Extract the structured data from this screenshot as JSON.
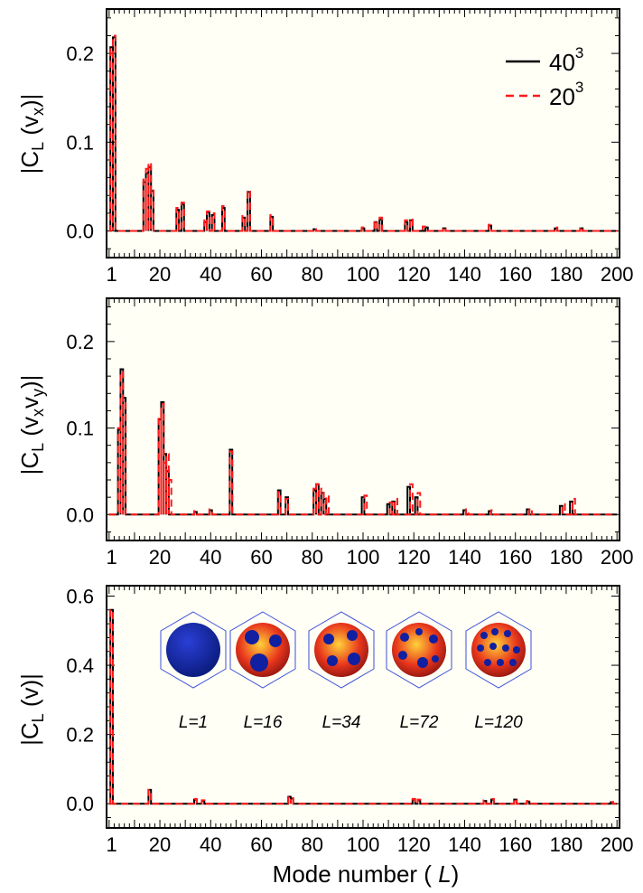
{
  "colors": {
    "series_40": "#000000",
    "series_20": "#ff1a1a",
    "frame_bg": "#fffff6"
  },
  "chart_data": [
    {
      "type": "line",
      "ylabel": "|C_L (v_x)|",
      "ylabel_parts": {
        "pre": "|C",
        "sub1": "L",
        "mid": " (v",
        "sub2": "x",
        "post": ")|"
      },
      "xlim": [
        -1,
        201
      ],
      "ylim": [
        -0.03,
        0.25
      ],
      "x_ticks": [
        1,
        20,
        40,
        60,
        80,
        100,
        120,
        140,
        160,
        180,
        200
      ],
      "y_ticks": [
        0.0,
        0.1,
        0.2
      ],
      "y_tick_labels": [
        "0.0",
        "0.1",
        "0.2"
      ],
      "legend": {
        "placement": "top-right",
        "entries": [
          {
            "series": 0,
            "base": "40",
            "sup": "3"
          },
          {
            "series": 1,
            "base": "20",
            "sup": "3"
          }
        ]
      },
      "series": [
        {
          "name": "40³",
          "style": "solid",
          "points": [
            [
              1,
              0.207
            ],
            [
              2,
              0.218
            ],
            [
              14,
              0.055
            ],
            [
              15,
              0.065
            ],
            [
              16,
              0.072
            ],
            [
              17,
              0.045
            ],
            [
              27,
              0.024
            ],
            [
              29,
              0.03
            ],
            [
              38,
              0.01
            ],
            [
              39,
              0.021
            ],
            [
              41,
              0.018
            ],
            [
              45,
              0.026
            ],
            [
              53,
              0.015
            ],
            [
              55,
              0.044
            ],
            [
              64,
              0.016
            ],
            [
              81,
              0.002
            ],
            [
              100,
              0.003
            ],
            [
              105,
              0.01
            ],
            [
              107,
              0.013
            ],
            [
              117,
              0.01
            ],
            [
              119,
              0.012
            ],
            [
              125,
              0.004
            ],
            [
              132,
              0.003
            ],
            [
              150,
              0.006
            ],
            [
              176,
              0.003
            ],
            [
              186,
              0.003
            ]
          ]
        },
        {
          "name": "20³",
          "style": "dashed",
          "points": [
            [
              1,
              0.205
            ],
            [
              2,
              0.22
            ],
            [
              14,
              0.058
            ],
            [
              15,
              0.07
            ],
            [
              16,
              0.077
            ],
            [
              17,
              0.05
            ],
            [
              27,
              0.026
            ],
            [
              29,
              0.032
            ],
            [
              38,
              0.012
            ],
            [
              39,
              0.022
            ],
            [
              41,
              0.02
            ],
            [
              45,
              0.028
            ],
            [
              53,
              0.017
            ],
            [
              55,
              0.046
            ],
            [
              64,
              0.018
            ],
            [
              81,
              0.003
            ],
            [
              100,
              0.004
            ],
            [
              105,
              0.012
            ],
            [
              107,
              0.015
            ],
            [
              117,
              0.012
            ],
            [
              119,
              0.014
            ],
            [
              124,
              0.005
            ],
            [
              132,
              0.004
            ],
            [
              150,
              0.007
            ],
            [
              176,
              0.004
            ],
            [
              186,
              0.004
            ]
          ]
        }
      ]
    },
    {
      "type": "line",
      "ylabel": "|C_L (v_x v_y)|",
      "ylabel_parts": {
        "pre": "|C",
        "sub1": "L",
        "mid": " (v",
        "sub2": "x",
        "mid2": "v",
        "sub3": "y",
        "post": ")|"
      },
      "xlim": [
        -1,
        201
      ],
      "ylim": [
        -0.03,
        0.25
      ],
      "x_ticks": [
        1,
        20,
        40,
        60,
        80,
        100,
        120,
        140,
        160,
        180,
        200
      ],
      "y_ticks": [
        0.0,
        0.1,
        0.2
      ],
      "y_tick_labels": [
        "0.0",
        "0.1",
        "0.2"
      ],
      "series": [
        {
          "name": "40³",
          "style": "solid",
          "points": [
            [
              4,
              0.098
            ],
            [
              5,
              0.168
            ],
            [
              6,
              0.135
            ],
            [
              20,
              0.11
            ],
            [
              21,
              0.13
            ],
            [
              22,
              0.07
            ],
            [
              23,
              0.05
            ],
            [
              34,
              0.003
            ],
            [
              40,
              0.005
            ],
            [
              48,
              0.075
            ],
            [
              67,
              0.028
            ],
            [
              70,
              0.02
            ],
            [
              81,
              0.028
            ],
            [
              82,
              0.035
            ],
            [
              84,
              0.025
            ],
            [
              85,
              0.018
            ],
            [
              100,
              0.02
            ],
            [
              110,
              0.012
            ],
            [
              112,
              0.015
            ],
            [
              118,
              0.032
            ],
            [
              121,
              0.02
            ],
            [
              140,
              0.005
            ],
            [
              150,
              0.004
            ],
            [
              165,
              0.006
            ],
            [
              178,
              0.01
            ],
            [
              182,
              0.015
            ]
          ]
        },
        {
          "name": "20³",
          "style": "dashed",
          "points": [
            [
              4,
              0.1
            ],
            [
              5,
              0.165
            ],
            [
              6,
              0.13
            ],
            [
              20,
              0.115
            ],
            [
              21,
              0.128
            ],
            [
              22,
              0.06
            ],
            [
              23,
              0.07
            ],
            [
              24,
              0.04
            ],
            [
              34,
              0.004
            ],
            [
              40,
              0.006
            ],
            [
              48,
              0.073
            ],
            [
              67,
              0.026
            ],
            [
              70,
              0.018
            ],
            [
              81,
              0.03
            ],
            [
              82,
              0.035
            ],
            [
              84,
              0.03
            ],
            [
              86,
              0.022
            ],
            [
              101,
              0.022
            ],
            [
              111,
              0.014
            ],
            [
              113,
              0.018
            ],
            [
              119,
              0.035
            ],
            [
              122,
              0.025
            ],
            [
              141,
              0.006
            ],
            [
              151,
              0.005
            ],
            [
              166,
              0.007
            ],
            [
              179,
              0.012
            ],
            [
              183,
              0.018
            ]
          ]
        }
      ]
    },
    {
      "type": "line",
      "ylabel": "|C_L (v)|",
      "ylabel_parts": {
        "pre": "|C",
        "sub1": "L",
        "mid": " (v",
        "post": ")|"
      },
      "xlim": [
        -1,
        201
      ],
      "ylim": [
        -0.07,
        0.63
      ],
      "x_ticks": [
        1,
        20,
        40,
        60,
        80,
        100,
        120,
        140,
        160,
        180,
        200
      ],
      "y_ticks": [
        0.0,
        0.2,
        0.4,
        0.6
      ],
      "y_tick_labels": [
        "0.0",
        "0.2",
        "0.4",
        "0.6"
      ],
      "xlabel": "Mode number ( L)",
      "xlabel_parts": {
        "pre": "Mode number ( ",
        "em": "L",
        "post": ")"
      },
      "insets": [
        {
          "label": "L=1"
        },
        {
          "label": "L=16"
        },
        {
          "label": "L=34"
        },
        {
          "label": "L=72"
        },
        {
          "label": "L=120"
        }
      ],
      "series": [
        {
          "name": "40³",
          "style": "solid",
          "points": [
            [
              1,
              0.56
            ],
            [
              16,
              0.04
            ],
            [
              34,
              0.012
            ],
            [
              37,
              0.008
            ],
            [
              71,
              0.02
            ],
            [
              72,
              0.015
            ],
            [
              120,
              0.012
            ],
            [
              122,
              0.01
            ],
            [
              148,
              0.008
            ],
            [
              151,
              0.012
            ],
            [
              160,
              0.012
            ],
            [
              165,
              0.006
            ],
            [
              198,
              0.004
            ]
          ]
        },
        {
          "name": "20³",
          "style": "dashed",
          "points": [
            [
              1,
              0.56
            ],
            [
              16,
              0.04
            ],
            [
              34,
              0.014
            ],
            [
              37,
              0.01
            ],
            [
              71,
              0.02
            ],
            [
              72,
              0.016
            ],
            [
              120,
              0.014
            ],
            [
              122,
              0.012
            ],
            [
              148,
              0.01
            ],
            [
              151,
              0.014
            ],
            [
              160,
              0.014
            ],
            [
              165,
              0.008
            ],
            [
              198,
              0.005
            ]
          ]
        }
      ]
    }
  ]
}
